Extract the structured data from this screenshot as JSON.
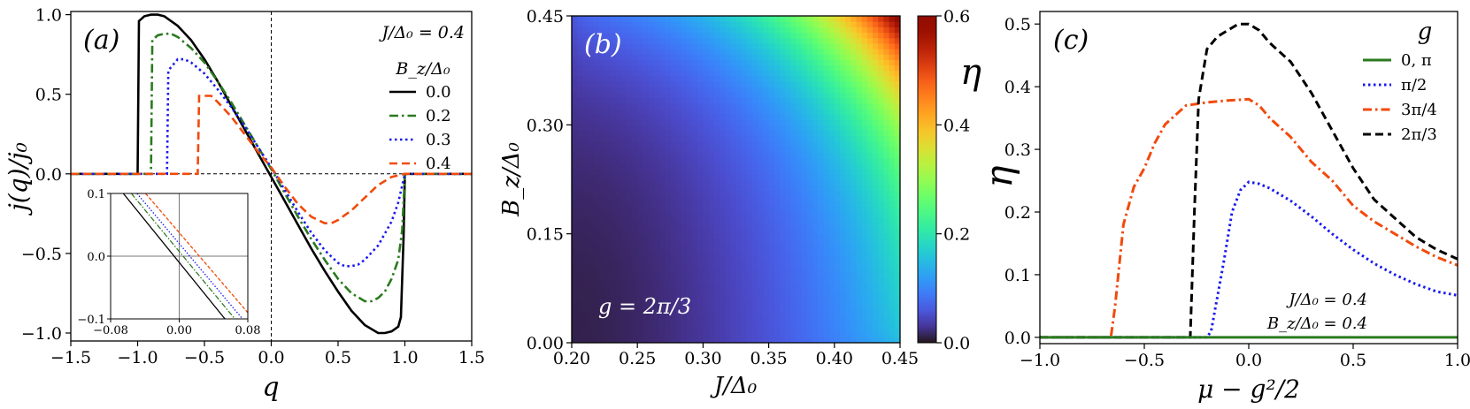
{
  "chart_data": [
    {
      "type": "line",
      "panel_label": "(a)",
      "annotation": "J/Δ₀ = 0.4",
      "xlabel": "q",
      "ylabel": "j(q)/j₀",
      "xlim": [
        -1.5,
        1.5
      ],
      "ylim": [
        -1.05,
        1.02
      ],
      "xticks": [
        "−1.5",
        "−1.0",
        "−0.5",
        "0.0",
        "0.5",
        "1.0",
        "1.5"
      ],
      "yticks": [
        "−1.0",
        "−0.5",
        "0.0",
        "0.5",
        "1.0"
      ],
      "legend_title": "B_z/Δ₀",
      "legend_position": "top-right",
      "series": [
        {
          "name": "0.0",
          "color": "#000000",
          "dash": "solid",
          "x": [
            -1.5,
            -1.0,
            -0.99,
            -0.95,
            -0.9,
            -0.85,
            -0.8,
            -0.7,
            -0.6,
            -0.5,
            -0.4,
            -0.3,
            -0.2,
            -0.1,
            0.0,
            0.1,
            0.2,
            0.3,
            0.4,
            0.5,
            0.6,
            0.7,
            0.8,
            0.85,
            0.9,
            0.95,
            0.97,
            0.99,
            1.0,
            1.5
          ],
          "y": [
            0,
            0,
            0.96,
            0.99,
            1.0,
            1.0,
            0.99,
            0.93,
            0.84,
            0.72,
            0.58,
            0.43,
            0.28,
            0.13,
            -0.02,
            -0.17,
            -0.32,
            -0.47,
            -0.61,
            -0.74,
            -0.86,
            -0.95,
            -1.0,
            -1.0,
            -0.99,
            -0.96,
            -0.9,
            -0.4,
            0,
            0
          ]
        },
        {
          "name": "0.2",
          "color": "#2a7a1e",
          "dash": "dashdot",
          "x": [
            -1.5,
            -0.9,
            -0.89,
            -0.85,
            -0.8,
            -0.75,
            -0.7,
            -0.6,
            -0.5,
            -0.4,
            -0.3,
            -0.2,
            -0.1,
            0.0,
            0.1,
            0.2,
            0.3,
            0.4,
            0.5,
            0.6,
            0.7,
            0.75,
            0.8,
            0.85,
            0.9,
            0.95,
            0.98,
            1.0,
            1.5
          ],
          "y": [
            0,
            0,
            0.84,
            0.87,
            0.88,
            0.88,
            0.86,
            0.79,
            0.7,
            0.58,
            0.45,
            0.31,
            0.17,
            0.03,
            -0.12,
            -0.27,
            -0.41,
            -0.54,
            -0.66,
            -0.75,
            -0.8,
            -0.8,
            -0.78,
            -0.74,
            -0.66,
            -0.54,
            -0.35,
            0,
            0
          ]
        },
        {
          "name": "0.3",
          "color": "#1a1aee",
          "dash": "dotted",
          "x": [
            -1.5,
            -0.78,
            -0.77,
            -0.7,
            -0.65,
            -0.6,
            -0.5,
            -0.4,
            -0.3,
            -0.2,
            -0.1,
            0.0,
            0.1,
            0.2,
            0.3,
            0.4,
            0.5,
            0.55,
            0.6,
            0.65,
            0.7,
            0.8,
            0.9,
            0.95,
            1.0,
            1.5
          ],
          "y": [
            0,
            0,
            0.65,
            0.72,
            0.72,
            0.7,
            0.63,
            0.53,
            0.42,
            0.3,
            0.17,
            0.04,
            -0.1,
            -0.24,
            -0.37,
            -0.48,
            -0.56,
            -0.58,
            -0.58,
            -0.57,
            -0.54,
            -0.45,
            -0.3,
            -0.18,
            0,
            0
          ]
        },
        {
          "name": "0.4",
          "color": "#f14a0c",
          "dash": "dashed",
          "x": [
            -1.5,
            -0.55,
            -0.54,
            -0.45,
            -0.4,
            -0.3,
            -0.2,
            -0.1,
            0.0,
            0.1,
            0.2,
            0.3,
            0.4,
            0.45,
            0.5,
            0.6,
            0.7,
            0.8,
            0.9,
            1.0,
            1.5
          ],
          "y": [
            0,
            0,
            0.49,
            0.49,
            0.45,
            0.36,
            0.25,
            0.14,
            0.04,
            -0.08,
            -0.19,
            -0.27,
            -0.31,
            -0.31,
            -0.29,
            -0.23,
            -0.15,
            -0.07,
            -0.02,
            0,
            0
          ]
        }
      ],
      "inset": {
        "xlim": [
          -0.08,
          0.08
        ],
        "ylim": [
          -0.1,
          0.1
        ],
        "xticks": [
          "−0.08",
          "0.00",
          "0.08"
        ],
        "yticks": [
          "0.1",
          "0.0",
          "−0.1"
        ],
        "series": [
          {
            "name": "0.0",
            "color": "#000000",
            "x": [
              -0.08,
              0.08
            ],
            "y": [
              0.125,
              -0.145
            ]
          },
          {
            "name": "0.2",
            "color": "#2a7a1e",
            "x": [
              -0.08,
              0.08
            ],
            "y": [
              0.14,
              -0.125
            ]
          },
          {
            "name": "0.3",
            "color": "#1a1aee",
            "x": [
              -0.08,
              0.08
            ],
            "y": [
              0.15,
              -0.11
            ]
          },
          {
            "name": "0.4",
            "color": "#f14a0c",
            "x": [
              -0.08,
              0.08
            ],
            "y": [
              0.165,
              -0.09
            ]
          }
        ]
      }
    },
    {
      "type": "heatmap",
      "panel_label": "(b)",
      "annotation": "g = 2π/3",
      "xlabel": "J/Δ₀",
      "ylabel": "B_z/Δ₀",
      "xlim": [
        0.2,
        0.45
      ],
      "ylim": [
        0.0,
        0.45
      ],
      "xticks": [
        "0.20",
        "0.25",
        "0.30",
        "0.35",
        "0.40",
        "0.45"
      ],
      "yticks": [
        "0.00",
        "0.15",
        "0.30",
        "0.45"
      ],
      "colorbar": {
        "label": "η",
        "range": [
          0.0,
          0.6
        ],
        "ticks": [
          "0.0",
          "0.2",
          "0.4",
          "0.6"
        ],
        "colormap": "turbo"
      },
      "value_at_corners": {
        "J0.20_B0.00": 0.0,
        "J0.45_B0.00": 0.13,
        "J0.20_B0.45": 0.03,
        "J0.45_B0.45": 0.6
      }
    },
    {
      "type": "line",
      "panel_label": "(c)",
      "annotation": [
        "J/Δ₀ = 0.4",
        "B_z/Δ₀ = 0.4"
      ],
      "xlabel": "μ − g²/2",
      "ylabel": "η",
      "xlim": [
        -1.0,
        1.0
      ],
      "ylim": [
        -0.01,
        0.52
      ],
      "xticks": [
        "−1.0",
        "−0.5",
        "0.0",
        "0.5",
        "1.0"
      ],
      "yticks": [
        "0.0",
        "0.1",
        "0.2",
        "0.3",
        "0.4",
        "0.5"
      ],
      "legend_title": "g",
      "legend_position": "top-right",
      "series": [
        {
          "name": "0, π",
          "color": "#2a7a1e",
          "dash": "solid",
          "x": [
            -1.0,
            1.0
          ],
          "y": [
            0,
            0
          ]
        },
        {
          "name": "π/2",
          "color": "#1a1aee",
          "dash": "dotted",
          "x": [
            -1.0,
            -0.2,
            -0.18,
            -0.12,
            -0.08,
            -0.04,
            0.0,
            0.05,
            0.1,
            0.2,
            0.3,
            0.4,
            0.5,
            0.6,
            0.7,
            0.8,
            0.9,
            1.0
          ],
          "y": [
            0,
            0,
            0.01,
            0.12,
            0.2,
            0.235,
            0.248,
            0.245,
            0.238,
            0.218,
            0.193,
            0.165,
            0.14,
            0.118,
            0.1,
            0.085,
            0.073,
            0.067
          ]
        },
        {
          "name": "3π/4",
          "color": "#f14a0c",
          "dash": "dashdot",
          "x": [
            -1.0,
            -0.66,
            -0.64,
            -0.6,
            -0.55,
            -0.5,
            -0.45,
            -0.4,
            -0.3,
            -0.2,
            -0.1,
            0.0,
            0.05,
            0.1,
            0.2,
            0.3,
            0.4,
            0.5,
            0.6,
            0.7,
            0.8,
            0.9,
            1.0
          ],
          "y": [
            0,
            0,
            0.05,
            0.18,
            0.24,
            0.27,
            0.31,
            0.34,
            0.37,
            0.375,
            0.378,
            0.38,
            0.37,
            0.35,
            0.32,
            0.28,
            0.25,
            0.21,
            0.185,
            0.165,
            0.145,
            0.128,
            0.115
          ]
        },
        {
          "name": "2π/3",
          "color": "#000000",
          "dash": "dashed",
          "x": [
            -1.0,
            -0.28,
            -0.26,
            -0.24,
            -0.2,
            -0.15,
            -0.1,
            -0.05,
            0.0,
            0.05,
            0.1,
            0.2,
            0.3,
            0.4,
            0.5,
            0.6,
            0.7,
            0.8,
            0.9,
            1.0
          ],
          "y": [
            0,
            0,
            0.2,
            0.38,
            0.46,
            0.48,
            0.49,
            0.5,
            0.5,
            0.49,
            0.47,
            0.44,
            0.39,
            0.33,
            0.27,
            0.22,
            0.19,
            0.16,
            0.14,
            0.125
          ]
        }
      ]
    }
  ]
}
